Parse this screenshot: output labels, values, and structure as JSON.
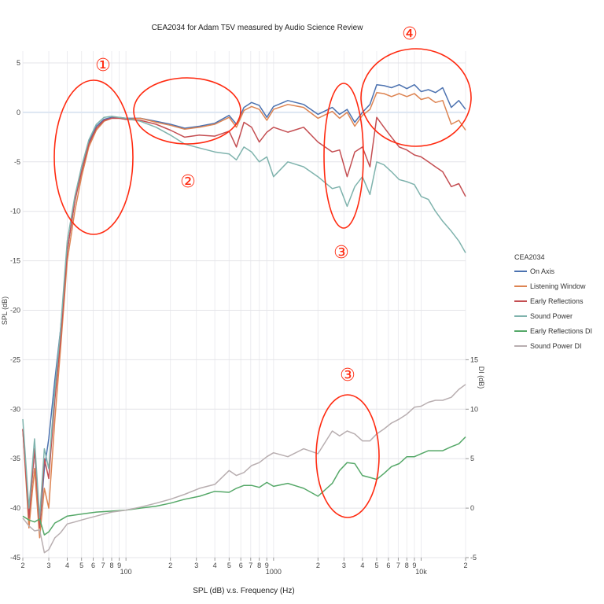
{
  "chart_data": {
    "type": "line",
    "title": "CEA2034 for Adam T5V measured by Audio Science Review",
    "xlabel": "SPL (dB) v.s. Frequency (Hz)",
    "ylabel": "SPL (dB)",
    "y2label": "DI (dB)",
    "xscale": "log",
    "xlim": [
      20,
      20000
    ],
    "ylim": [
      -45,
      5
    ],
    "y2lim": [
      -5,
      15
    ],
    "grid": true,
    "legend_title": "CEA2034",
    "legend_position": "right",
    "y_ticks": [
      5,
      0,
      -5,
      -10,
      -15,
      -20,
      -25,
      -30,
      -35,
      -40,
      -45
    ],
    "y_tick_labels": [
      "5",
      "0",
      "-5",
      "-10",
      "-15",
      "-20",
      "-25",
      "-30",
      "-35",
      "-40",
      "-45"
    ],
    "y2_ticks": [
      15,
      10,
      5,
      0,
      -5
    ],
    "y2_tick_labels": [
      "15",
      "10",
      "5",
      "0",
      "-5"
    ],
    "x_ticks": [
      {
        "value": 20,
        "label": "2"
      },
      {
        "value": 30,
        "label": "3"
      },
      {
        "value": 40,
        "label": "4"
      },
      {
        "value": 50,
        "label": "5"
      },
      {
        "value": 60,
        "label": "6"
      },
      {
        "value": 70,
        "label": "7"
      },
      {
        "value": 80,
        "label": "8"
      },
      {
        "value": 90,
        "label": "9"
      },
      {
        "value": 100,
        "label": "100",
        "major": true
      },
      {
        "value": 200,
        "label": "2"
      },
      {
        "value": 300,
        "label": "3"
      },
      {
        "value": 400,
        "label": "4"
      },
      {
        "value": 500,
        "label": "5"
      },
      {
        "value": 600,
        "label": "6"
      },
      {
        "value": 700,
        "label": "7"
      },
      {
        "value": 800,
        "label": "8"
      },
      {
        "value": 900,
        "label": "9"
      },
      {
        "value": 1000,
        "label": "1000",
        "major": true
      },
      {
        "value": 2000,
        "label": "2"
      },
      {
        "value": 3000,
        "label": "3"
      },
      {
        "value": 4000,
        "label": "4"
      },
      {
        "value": 5000,
        "label": "5"
      },
      {
        "value": 6000,
        "label": "6"
      },
      {
        "value": 7000,
        "label": "7"
      },
      {
        "value": 8000,
        "label": "8"
      },
      {
        "value": 9000,
        "label": "9"
      },
      {
        "value": 10000,
        "label": "10k",
        "major": true
      },
      {
        "value": 20000,
        "label": "2"
      }
    ],
    "x": [
      20,
      22,
      24,
      26,
      28,
      30,
      33,
      36,
      40,
      45,
      50,
      56,
      63,
      71,
      80,
      90,
      100,
      125,
      160,
      200,
      250,
      315,
      400,
      500,
      560,
      630,
      710,
      800,
      900,
      1000,
      1250,
      1600,
      2000,
      2500,
      2800,
      3150,
      3550,
      4000,
      4500,
      5000,
      5600,
      6300,
      7100,
      8000,
      9000,
      10000,
      11200,
      12500,
      14000,
      16000,
      18000,
      20000
    ],
    "series": [
      {
        "name": "On Axis",
        "color": "#4c72b0",
        "axis": "left",
        "values": [
          -32,
          -41,
          -34,
          -42,
          -36,
          -33,
          -27,
          -22,
          -14,
          -9,
          -5.5,
          -3,
          -1.4,
          -0.7,
          -0.5,
          -0.5,
          -0.6,
          -0.6,
          -0.9,
          -1.2,
          -1.6,
          -1.4,
          -1.1,
          -0.3,
          -1.2,
          0.5,
          1.0,
          0.7,
          -0.5,
          0.6,
          1.2,
          0.8,
          -0.2,
          0.5,
          -0.2,
          0.3,
          -1.0,
          0,
          0.8,
          2.8,
          2.7,
          2.5,
          2.8,
          2.4,
          2.8,
          2.1,
          2.3,
          2.0,
          2.5,
          0.5,
          1.2,
          0.3
        ]
      },
      {
        "name": "Listening Window",
        "color": "#dd8452",
        "axis": "left",
        "values": [
          -32,
          -42,
          -36,
          -43,
          -38,
          -40,
          -31,
          -24,
          -15,
          -10,
          -6.5,
          -3.5,
          -1.8,
          -0.9,
          -0.6,
          -0.6,
          -0.7,
          -0.6,
          -1.0,
          -1.3,
          -1.7,
          -1.5,
          -1.2,
          -0.5,
          -1.5,
          0.2,
          0.6,
          0.3,
          -0.8,
          0.3,
          0.8,
          0.5,
          -0.6,
          0.1,
          -0.6,
          0,
          -1.4,
          -0.3,
          0.3,
          2.0,
          1.9,
          1.6,
          1.9,
          1.6,
          1.9,
          1.3,
          1.5,
          1.0,
          1.2,
          -1.2,
          -0.8,
          -1.8
        ]
      },
      {
        "name": "Early Reflections",
        "color": "#c44e52",
        "axis": "left",
        "values": [
          -32,
          -41,
          -34,
          -42,
          -35,
          -37,
          -29,
          -23,
          -14,
          -9,
          -6,
          -3.2,
          -1.6,
          -0.8,
          -0.6,
          -0.6,
          -0.7,
          -0.8,
          -1.2,
          -1.8,
          -2.5,
          -2.3,
          -2.4,
          -1.9,
          -3.5,
          -1.0,
          -1.5,
          -3.0,
          -2.0,
          -1.5,
          -2.0,
          -1.5,
          -3.0,
          -4.0,
          -3.8,
          -6.5,
          -4.0,
          -3.5,
          -5.5,
          -0.5,
          -1.5,
          -2.5,
          -3.5,
          -3.8,
          -4.3,
          -4.5,
          -5.0,
          -5.5,
          -6.0,
          -7.5,
          -7.2,
          -8.5
        ]
      },
      {
        "name": "Sound Power",
        "color": "#7fb3ad",
        "axis": "left",
        "values": [
          -31,
          -40,
          -33,
          -41,
          -34,
          -36,
          -28,
          -22,
          -13,
          -8.5,
          -5.5,
          -2.8,
          -1.2,
          -0.5,
          -0.4,
          -0.5,
          -0.6,
          -0.9,
          -1.5,
          -2.3,
          -3.2,
          -3.6,
          -4.0,
          -4.2,
          -4.8,
          -3.5,
          -4.0,
          -5.0,
          -4.5,
          -6.5,
          -5.0,
          -5.5,
          -6.5,
          -7.7,
          -7.5,
          -9.5,
          -7.5,
          -6.5,
          -8.3,
          -5.0,
          -5.3,
          -6.0,
          -6.8,
          -7.0,
          -7.3,
          -8.5,
          -8.8,
          -10.0,
          -11.0,
          -12.0,
          -13.0,
          -14.2
        ]
      },
      {
        "name": "Early Reflections DI",
        "color": "#55a868",
        "axis": "right",
        "values": [
          -0.8,
          -1.2,
          -1.4,
          -1.1,
          -2.7,
          -2.4,
          -1.5,
          -1.2,
          -0.8,
          -0.7,
          -0.6,
          -0.5,
          -0.4,
          -0.35,
          -0.3,
          -0.25,
          -0.2,
          0,
          0.2,
          0.5,
          0.9,
          1.2,
          1.7,
          1.6,
          2.0,
          2.3,
          2.3,
          2.1,
          2.6,
          2.2,
          2.5,
          2.0,
          1.2,
          2.5,
          3.8,
          4.6,
          4.5,
          3.3,
          3.1,
          2.9,
          3.5,
          4.2,
          4.5,
          5.2,
          5.2,
          5.5,
          5.8,
          5.8,
          5.8,
          6.2,
          6.5,
          7.2
        ]
      },
      {
        "name": "Sound Power DI",
        "color": "#b8aeb0",
        "axis": "right",
        "values": [
          -1.0,
          -1.8,
          -2.3,
          -2.2,
          -4.5,
          -4.2,
          -3.0,
          -2.5,
          -1.6,
          -1.4,
          -1.2,
          -1.0,
          -0.8,
          -0.6,
          -0.4,
          -0.3,
          -0.2,
          0.1,
          0.5,
          0.9,
          1.4,
          2.0,
          2.4,
          3.8,
          3.3,
          3.6,
          4.3,
          4.6,
          5.2,
          5.6,
          5.2,
          6.0,
          5.5,
          7.8,
          7.3,
          7.8,
          7.5,
          6.8,
          6.8,
          7.5,
          8.0,
          8.6,
          9.0,
          9.5,
          10.2,
          10.3,
          10.7,
          10.9,
          10.9,
          11.2,
          12.0,
          12.5
        ]
      }
    ],
    "annotations": [
      "①",
      "②",
      "③",
      "④",
      "③"
    ]
  }
}
